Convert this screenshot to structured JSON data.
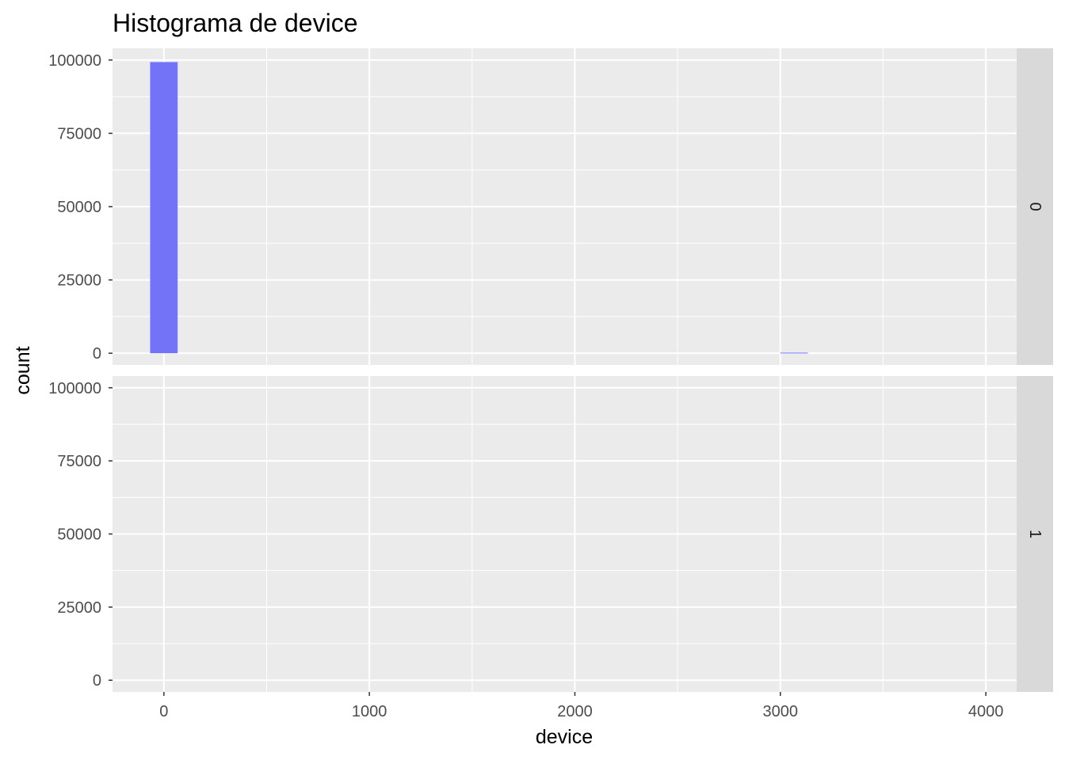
{
  "chart_data": {
    "type": "bar",
    "title": "Histograma de device",
    "xlabel": "device",
    "ylabel": "count",
    "xlim": [
      -250,
      4150
    ],
    "ylim": [
      -4000,
      104000
    ],
    "x_ticks": [
      0,
      1000,
      2000,
      3000,
      4000
    ],
    "y_ticks": [
      0,
      25000,
      50000,
      75000,
      100000
    ],
    "x_tick_labels": [
      "0",
      "1000",
      "2000",
      "3000",
      "4000"
    ],
    "y_tick_labels": [
      "0",
      "25000",
      "50000",
      "75000",
      "100000"
    ],
    "bar_fill": "#7373f7",
    "panel_bg": "#ebebeb",
    "strip_bg": "#d9d9d9",
    "grid_color": "#ffffff",
    "grid": true,
    "facets": [
      {
        "strip_label": "0",
        "bins": [
          {
            "x_min": -67,
            "x_max": 67,
            "count": 99300
          },
          {
            "x_min": 3000,
            "x_max": 3134,
            "count": 200
          }
        ]
      },
      {
        "strip_label": "1",
        "bins": []
      }
    ]
  }
}
